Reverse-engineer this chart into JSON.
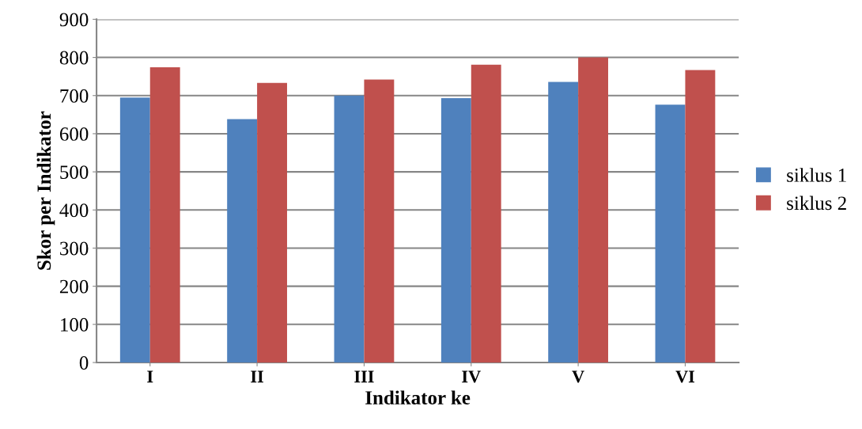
{
  "chart_data": {
    "type": "bar",
    "xlabel": "Indikator ke",
    "ylabel": "Skor per Indikator",
    "categories": [
      "I",
      "II",
      "III",
      "IV",
      "V",
      "VI"
    ],
    "series": [
      {
        "name": "siklus 1",
        "color": "#4f81bd",
        "values": [
          695,
          638,
          700,
          693,
          736,
          676
        ]
      },
      {
        "name": "siklus 2",
        "color": "#c0504d",
        "values": [
          774,
          733,
          742,
          781,
          800,
          767
        ]
      }
    ],
    "ylim": [
      0,
      900
    ],
    "yticks": [
      0,
      100,
      200,
      300,
      400,
      500,
      600,
      700,
      800,
      900
    ],
    "grid": "y",
    "legend": "right"
  }
}
